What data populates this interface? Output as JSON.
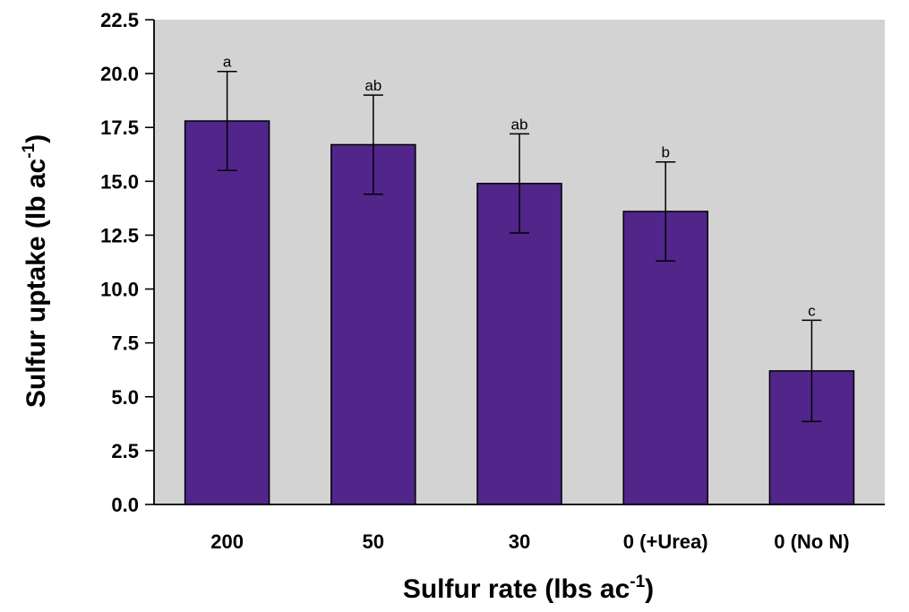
{
  "chart_data": {
    "type": "bar",
    "categories": [
      "200",
      "50",
      "30",
      "0 (+Urea)",
      "0 (No N)"
    ],
    "values": [
      17.8,
      16.7,
      14.9,
      13.6,
      6.2
    ],
    "errors": [
      2.3,
      2.3,
      2.3,
      2.3,
      2.35
    ],
    "significance_letters": [
      "a",
      "ab",
      "ab",
      "b",
      "c"
    ],
    "xlabel": {
      "main": "Sulfur rate (lbs ac",
      "sup": "-1",
      "close": ")"
    },
    "ylabel": {
      "main": "Sulfur uptake (lb ac",
      "sup": "-1",
      "close": ")"
    },
    "ylim": [
      0,
      22.5
    ],
    "yticks": [
      "0.0",
      "2.5",
      "5.0",
      "7.5",
      "10.0",
      "12.5",
      "15.0",
      "17.5",
      "20.0",
      "22.5"
    ],
    "grid": false,
    "colors": {
      "bar": "#51258a",
      "plot_background": "#d3d3d3",
      "axis": "#000000"
    }
  }
}
